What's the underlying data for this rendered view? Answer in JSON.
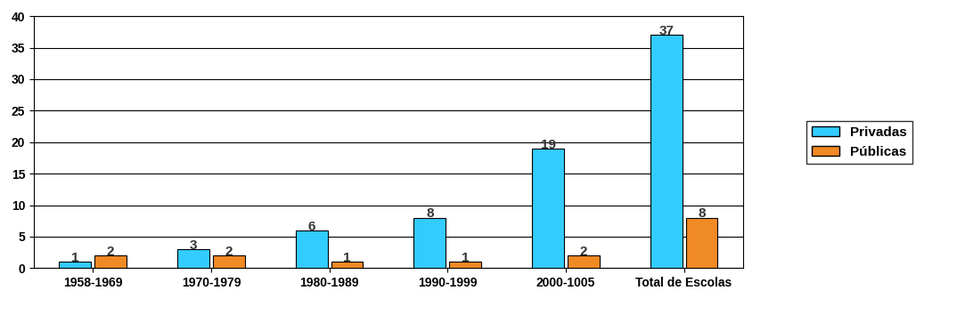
{
  "chart_data": {
    "type": "bar",
    "categories": [
      "1958-1969",
      "1970-1979",
      "1980-1989",
      "1990-1999",
      "2000-1005",
      "Total de Escolas"
    ],
    "series": [
      {
        "name": "Privadas",
        "color": "#33ccff",
        "values": [
          1,
          3,
          6,
          8,
          19,
          37
        ]
      },
      {
        "name": "Públicas",
        "color": "#f08a24",
        "values": [
          2,
          2,
          1,
          1,
          2,
          8
        ]
      }
    ],
    "ylim": [
      0,
      40
    ],
    "yticks": [
      0,
      5,
      10,
      15,
      20,
      25,
      30,
      35,
      40
    ],
    "grid": true,
    "legend": "right",
    "data_labels": true
  }
}
